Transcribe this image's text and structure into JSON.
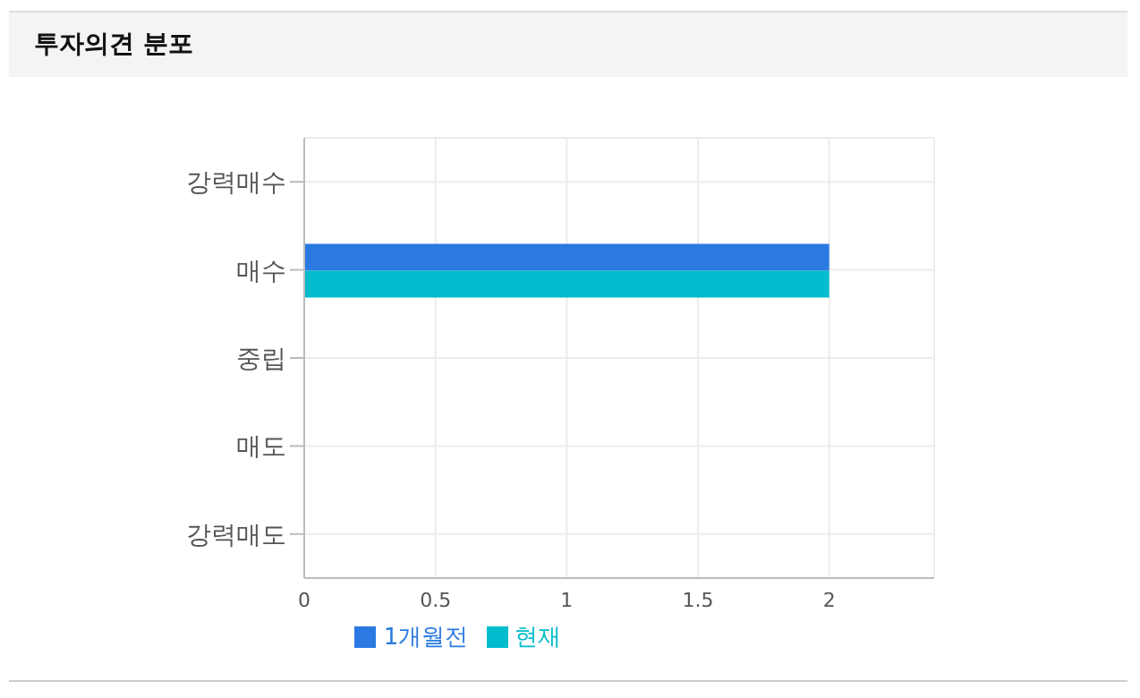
{
  "chart_data": {
    "type": "bar",
    "orientation": "horizontal",
    "title": "투자의견 분포",
    "categories": [
      "강력매수",
      "매수",
      "중립",
      "매도",
      "강력매도"
    ],
    "series": [
      {
        "name": "1개월전",
        "color": "#2a7ae2",
        "values": [
          0,
          2,
          0,
          0,
          0
        ]
      },
      {
        "name": "현재",
        "color": "#00bccc",
        "values": [
          0,
          2,
          0,
          0,
          0
        ]
      }
    ],
    "xlim": [
      0,
      2.4
    ],
    "xticks": [
      0,
      0.5,
      1,
      1.5,
      2
    ],
    "grid": true,
    "legend": "bottom"
  }
}
